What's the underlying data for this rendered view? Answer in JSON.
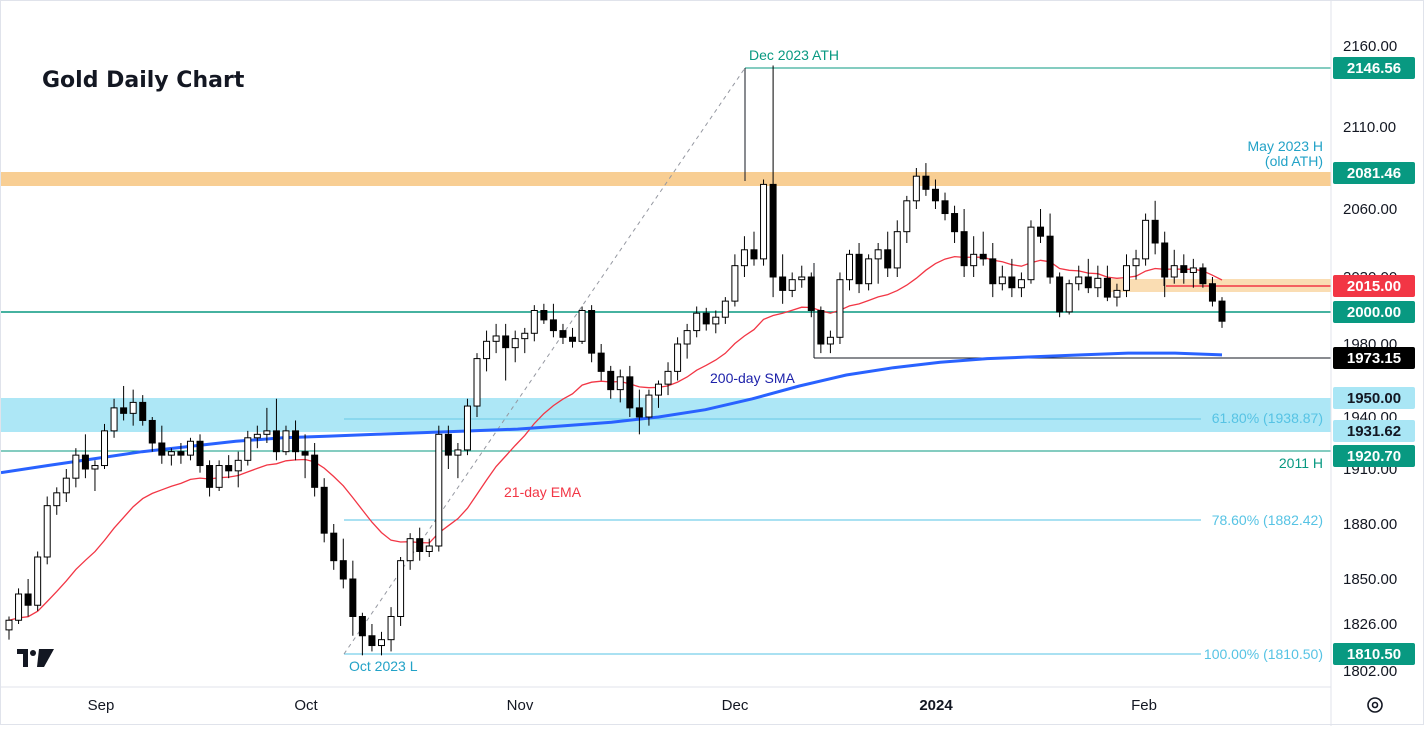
{
  "chart_data": {
    "type": "candlestick",
    "title": "Gold Daily Chart",
    "y_ticks": [
      "2160.00",
      "2110.00",
      "2060.00",
      "2030.00",
      "1980.00",
      "1940.00",
      "1910.00",
      "1880.00",
      "1850.00",
      "1826.00",
      "1802.00"
    ],
    "x_ticks": [
      "Sep",
      "Oct",
      "Nov",
      "Dec",
      "2024",
      "Feb"
    ],
    "candles": [
      [
        1823,
        1830,
        1818,
        1828
      ],
      [
        1828,
        1845,
        1826,
        1842
      ],
      [
        1842,
        1850,
        1830,
        1836
      ],
      [
        1836,
        1865,
        1833,
        1862
      ],
      [
        1862,
        1895,
        1858,
        1890
      ],
      [
        1890,
        1900,
        1885,
        1897
      ],
      [
        1897,
        1910,
        1892,
        1905
      ],
      [
        1905,
        1922,
        1900,
        1918
      ],
      [
        1918,
        1930,
        1905,
        1910
      ],
      [
        1910,
        1915,
        1898,
        1912
      ],
      [
        1912,
        1936,
        1910,
        1932
      ],
      [
        1932,
        1950,
        1928,
        1945
      ],
      [
        1945,
        1957,
        1938,
        1942
      ],
      [
        1942,
        1955,
        1935,
        1948
      ],
      [
        1948,
        1952,
        1935,
        1938
      ],
      [
        1938,
        1940,
        1920,
        1925
      ],
      [
        1925,
        1935,
        1913,
        1918
      ],
      [
        1918,
        1922,
        1912,
        1920
      ],
      [
        1920,
        1925,
        1913,
        1918
      ],
      [
        1918,
        1928,
        1915,
        1926
      ],
      [
        1926,
        1930,
        1908,
        1912
      ],
      [
        1912,
        1915,
        1895,
        1900
      ],
      [
        1900,
        1915,
        1898,
        1912
      ],
      [
        1912,
        1918,
        1905,
        1909
      ],
      [
        1909,
        1920,
        1900,
        1915
      ],
      [
        1915,
        1932,
        1912,
        1928
      ],
      [
        1928,
        1935,
        1922,
        1930
      ],
      [
        1930,
        1945,
        1925,
        1932
      ],
      [
        1932,
        1950,
        1915,
        1920
      ],
      [
        1920,
        1935,
        1918,
        1932
      ],
      [
        1932,
        1938,
        1915,
        1920
      ],
      [
        1920,
        1930,
        1905,
        1918
      ],
      [
        1918,
        1925,
        1895,
        1900
      ],
      [
        1900,
        1905,
        1870,
        1875
      ],
      [
        1875,
        1880,
        1855,
        1860
      ],
      [
        1860,
        1872,
        1845,
        1850
      ],
      [
        1850,
        1860,
        1820,
        1830
      ],
      [
        1830,
        1832,
        1810,
        1820
      ],
      [
        1820,
        1826,
        1812,
        1815
      ],
      [
        1815,
        1822,
        1810,
        1818
      ],
      [
        1818,
        1835,
        1812,
        1830
      ],
      [
        1830,
        1862,
        1825,
        1860
      ],
      [
        1860,
        1875,
        1855,
        1872
      ],
      [
        1872,
        1878,
        1860,
        1865
      ],
      [
        1865,
        1872,
        1862,
        1868
      ],
      [
        1868,
        1935,
        1865,
        1930
      ],
      [
        1930,
        1935,
        1910,
        1918
      ],
      [
        1918,
        1925,
        1905,
        1921
      ],
      [
        1921,
        1950,
        1918,
        1946
      ],
      [
        1946,
        1975,
        1940,
        1972
      ],
      [
        1972,
        1990,
        1965,
        1982
      ],
      [
        1982,
        1995,
        1975,
        1986
      ],
      [
        1986,
        1995,
        1960,
        1978
      ],
      [
        1978,
        1990,
        1970,
        1984
      ],
      [
        1984,
        1992,
        1975,
        1988
      ],
      [
        1988,
        2009,
        1982,
        2005
      ],
      [
        2005,
        2010,
        1995,
        1998
      ],
      [
        1998,
        2010,
        1985,
        1990
      ],
      [
        1990,
        1995,
        1980,
        1985
      ],
      [
        1985,
        1992,
        1978,
        1982
      ],
      [
        1982,
        2008,
        1980,
        2005
      ],
      [
        2005,
        2009,
        1970,
        1975
      ],
      [
        1975,
        1980,
        1960,
        1965
      ],
      [
        1965,
        1968,
        1950,
        1955
      ],
      [
        1955,
        1966,
        1948,
        1962
      ],
      [
        1962,
        1968,
        1940,
        1945
      ],
      [
        1945,
        1955,
        1930,
        1940
      ],
      [
        1940,
        1955,
        1935,
        1952
      ],
      [
        1952,
        1960,
        1945,
        1958
      ],
      [
        1958,
        1970,
        1952,
        1965
      ],
      [
        1965,
        1985,
        1960,
        1980
      ],
      [
        1980,
        1995,
        1972,
        1990
      ],
      [
        1990,
        2008,
        1985,
        2003
      ],
      [
        2003,
        2007,
        1990,
        1995
      ],
      [
        1995,
        2005,
        1988,
        2000
      ],
      [
        2000,
        2015,
        1995,
        2012
      ],
      [
        2012,
        2040,
        2008,
        2035
      ],
      [
        2035,
        2048,
        2030,
        2042
      ],
      [
        2042,
        2050,
        2035,
        2038
      ],
      [
        2038,
        2078,
        2035,
        2075
      ],
      [
        2075,
        2148,
        2015,
        2030
      ],
      [
        2030,
        2040,
        2010,
        2020
      ],
      [
        2020,
        2032,
        2015,
        2028
      ],
      [
        2028,
        2035,
        2022,
        2030
      ],
      [
        2030,
        2032,
        2000,
        2005
      ],
      [
        2005,
        2008,
        1975,
        1980
      ],
      [
        1980,
        1990,
        1975,
        1985
      ],
      [
        1985,
        2032,
        1980,
        2028
      ],
      [
        2028,
        2042,
        2020,
        2040
      ],
      [
        2040,
        2045,
        2018,
        2025
      ],
      [
        2025,
        2040,
        2020,
        2038
      ],
      [
        2038,
        2045,
        2025,
        2042
      ],
      [
        2042,
        2050,
        2030,
        2034
      ],
      [
        2034,
        2055,
        2030,
        2050
      ],
      [
        2050,
        2068,
        2045,
        2065
      ],
      [
        2065,
        2085,
        2060,
        2080
      ],
      [
        2080,
        2088,
        2068,
        2072
      ],
      [
        2072,
        2078,
        2060,
        2065
      ],
      [
        2065,
        2070,
        2055,
        2058
      ],
      [
        2058,
        2062,
        2045,
        2050
      ],
      [
        2050,
        2060,
        2030,
        2035
      ],
      [
        2035,
        2048,
        2030,
        2040
      ],
      [
        2040,
        2050,
        2035,
        2038
      ],
      [
        2038,
        2045,
        2015,
        2025
      ],
      [
        2025,
        2035,
        2020,
        2030
      ],
      [
        2030,
        2038,
        2015,
        2022
      ],
      [
        2022,
        2032,
        2015,
        2028
      ],
      [
        2028,
        2055,
        2025,
        2052
      ],
      [
        2052,
        2060,
        2045,
        2048
      ],
      [
        2048,
        2058,
        2025,
        2030
      ],
      [
        2030,
        2032,
        2000,
        2004
      ],
      [
        2004,
        2028,
        2002,
        2025
      ],
      [
        2025,
        2035,
        2020,
        2030
      ],
      [
        2030,
        2038,
        2018,
        2022
      ],
      [
        2022,
        2035,
        2015,
        2029
      ],
      [
        2029,
        2035,
        2012,
        2015
      ],
      [
        2015,
        2025,
        2008,
        2020
      ],
      [
        2020,
        2040,
        2015,
        2035
      ],
      [
        2035,
        2042,
        2028,
        2038
      ],
      [
        2038,
        2058,
        2035,
        2055
      ],
      [
        2055,
        2065,
        2040,
        2045
      ],
      [
        2045,
        2050,
        2015,
        2030
      ],
      [
        2030,
        2042,
        2025,
        2035
      ],
      [
        2035,
        2040,
        2025,
        2032
      ],
      [
        2032,
        2038,
        2022,
        2034
      ],
      [
        2034,
        2036,
        2022,
        2025
      ],
      [
        2025,
        2030,
        2008,
        2012
      ],
      [
        2012,
        2015,
        1992,
        1997
      ]
    ],
    "ema_21_label": "21-day EMA",
    "sma_200_label": "200-day SMA",
    "levels": [
      {
        "value": 2146.56,
        "label": "2146.56",
        "color": "#089981"
      },
      {
        "value": 2081.46,
        "label": "2081.46",
        "color": "#089981"
      },
      {
        "value": 2015.0,
        "label": "2015.00",
        "color": "#f23645"
      },
      {
        "value": 2000.0,
        "label": "2000.00",
        "color": "#089981"
      },
      {
        "value": 1973.15,
        "label": "1973.15",
        "color": "#131722"
      },
      {
        "value": 1950.0,
        "label": "1950.00",
        "color": "#a9e6f5"
      },
      {
        "value": 1931.62,
        "label": "1931.62",
        "color": "#a9e6f5"
      },
      {
        "value": 1920.7,
        "label": "1920.70",
        "color": "#089981"
      },
      {
        "value": 1810.5,
        "label": "1810.50",
        "color": "#089981"
      }
    ],
    "annotations": {
      "ath": "Dec 2023 ATH",
      "may_high_1": "May 2023 H",
      "may_high_2": "(old ATH)",
      "fib_618": "61.80% (1938.87)",
      "fib_786": "78.60% (1882.42)",
      "fib_100": "100.00% (1810.50)",
      "h2011": "2011 H",
      "oct_low": "Oct 2023 L"
    },
    "colors": {
      "up": "#ffffff",
      "down": "#000000",
      "ema": "#f23645",
      "sma": "#2962ff",
      "support_zone": "#a9e6f5",
      "resistance_zone": "#f7c680",
      "level_green": "#089981",
      "fib": "#56c3e4"
    }
  }
}
